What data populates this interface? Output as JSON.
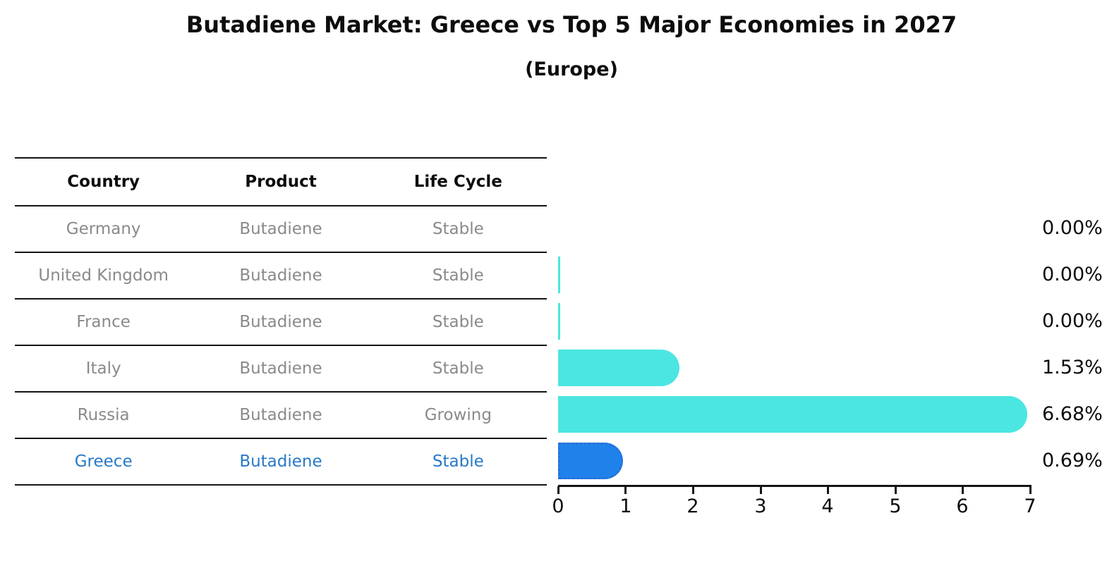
{
  "title": "Butadiene Market: Greece vs Top 5 Major Economies in 2027",
  "subtitle": "(Europe)",
  "table": {
    "headers": [
      "Country",
      "Product",
      "Life Cycle"
    ],
    "rows": [
      {
        "country": "Germany",
        "product": "Butadiene",
        "life_cycle": "Stable",
        "highlighted": false
      },
      {
        "country": "United Kingdom",
        "product": "Butadiene",
        "life_cycle": "Stable",
        "highlighted": false
      },
      {
        "country": "France",
        "product": "Butadiene",
        "life_cycle": "Stable",
        "highlighted": false
      },
      {
        "country": "Italy",
        "product": "Butadiene",
        "life_cycle": "Stable",
        "highlighted": false
      },
      {
        "country": "Russia",
        "product": "Butadiene",
        "life_cycle": "Growing",
        "highlighted": false
      },
      {
        "country": "Greece",
        "product": "Butadiene",
        "life_cycle": "Stable",
        "highlighted": true
      }
    ]
  },
  "chart_data": {
    "type": "bar",
    "orientation": "horizontal",
    "title": "Butadiene Market: Greece vs Top 5 Major Economies in 2027 (Europe)",
    "categories": [
      "Germany",
      "United Kingdom",
      "France",
      "Italy",
      "Russia",
      "Greece"
    ],
    "values": [
      0.0,
      0.0,
      0.0,
      1.53,
      6.68,
      0.69
    ],
    "value_labels": [
      "0.00%",
      "0.00%",
      "0.00%",
      "1.53%",
      "6.68%",
      "0.69%"
    ],
    "unit": "%",
    "xlabel": "",
    "ylabel": "",
    "xlim": [
      0,
      7
    ],
    "x_ticks": [
      "0",
      "1",
      "2",
      "3",
      "4",
      "5",
      "6",
      "7"
    ],
    "grid": false,
    "legend": false,
    "bar_render": [
      "none",
      "sliver",
      "sliver",
      "full",
      "full",
      "full"
    ],
    "highlight_category": "Greece",
    "colors": {
      "bar_default": "#4be6e1",
      "bar_highlight": "#1e82ea",
      "bar_highlight_border": "#2b6fd8",
      "row_text": "#8a8a8a",
      "highlight_text": "#2879c8",
      "axis_and_text": "#141414",
      "background": "#ffffff"
    }
  }
}
